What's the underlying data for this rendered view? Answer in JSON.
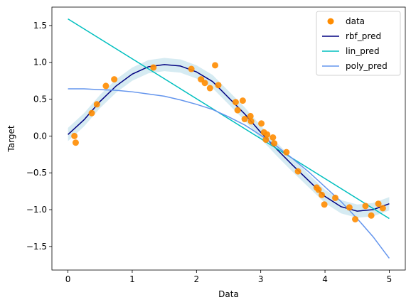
{
  "chart_data": {
    "type": "scatter",
    "title": "",
    "xlabel": "Data",
    "ylabel": "Target",
    "xlim": [
      -0.25,
      5.25
    ],
    "ylim": [
      -1.82,
      1.75
    ],
    "xticks": [
      0,
      1,
      2,
      3,
      4,
      5
    ],
    "xtick_labels": [
      "0",
      "1",
      "2",
      "3",
      "4",
      "5"
    ],
    "yticks": [
      -1.5,
      -1.0,
      -0.5,
      0.0,
      0.5,
      1.0,
      1.5
    ],
    "ytick_labels": [
      "−1.5",
      "−1.0",
      "−0.5",
      "0.0",
      "0.5",
      "1.0",
      "1.5"
    ],
    "grid": false,
    "legend_position": "top-right",
    "scatter": {
      "name": "data",
      "color": "#ff8c00",
      "points": [
        [
          0.1,
          0.0
        ],
        [
          0.12,
          -0.09
        ],
        [
          0.37,
          0.31
        ],
        [
          0.45,
          0.43
        ],
        [
          0.59,
          0.68
        ],
        [
          0.72,
          0.77
        ],
        [
          1.33,
          0.93
        ],
        [
          1.92,
          0.91
        ],
        [
          2.07,
          0.77
        ],
        [
          2.13,
          0.72
        ],
        [
          2.21,
          0.65
        ],
        [
          2.29,
          0.96
        ],
        [
          2.34,
          0.69
        ],
        [
          2.61,
          0.46
        ],
        [
          2.64,
          0.35
        ],
        [
          2.72,
          0.48
        ],
        [
          2.75,
          0.23
        ],
        [
          2.84,
          0.27
        ],
        [
          2.85,
          0.2
        ],
        [
          3.01,
          0.17
        ],
        [
          3.05,
          0.05
        ],
        [
          3.08,
          -0.05
        ],
        [
          3.1,
          0.02
        ],
        [
          3.19,
          -0.02
        ],
        [
          3.21,
          -0.1
        ],
        [
          3.4,
          -0.22
        ],
        [
          3.58,
          -0.48
        ],
        [
          3.87,
          -0.7
        ],
        [
          3.9,
          -0.73
        ],
        [
          3.95,
          -0.8
        ],
        [
          3.99,
          -0.93
        ],
        [
          4.16,
          -0.84
        ],
        [
          4.38,
          -0.97
        ],
        [
          4.47,
          -1.13
        ],
        [
          4.63,
          -0.95
        ],
        [
          4.72,
          -1.08
        ],
        [
          4.83,
          -0.92
        ],
        [
          4.9,
          -0.98
        ]
      ]
    },
    "series": [
      {
        "name": "rbf_pred",
        "color": "#000080",
        "x": [
          0.0,
          0.25,
          0.5,
          0.75,
          1.0,
          1.25,
          1.5,
          1.75,
          2.0,
          2.25,
          2.5,
          2.75,
          3.0,
          3.25,
          3.5,
          3.75,
          4.0,
          4.25,
          4.5,
          4.75,
          5.0
        ],
        "values": [
          0.02,
          0.22,
          0.47,
          0.68,
          0.84,
          0.94,
          0.97,
          0.95,
          0.87,
          0.74,
          0.52,
          0.3,
          0.05,
          -0.18,
          -0.4,
          -0.61,
          -0.82,
          -0.96,
          -1.02,
          -1.0,
          -0.92
        ]
      },
      {
        "name": "lin_pred",
        "color": "#00bfbf",
        "x": [
          0.0,
          5.0
        ],
        "values": [
          1.59,
          -1.12
        ]
      },
      {
        "name": "poly_pred",
        "color": "#6495ed",
        "x": [
          0.0,
          0.25,
          0.5,
          0.75,
          1.0,
          1.25,
          1.5,
          1.75,
          2.0,
          2.25,
          2.5,
          2.75,
          3.0,
          3.25,
          3.5,
          3.75,
          4.0,
          4.25,
          4.5,
          4.75,
          5.0
        ],
        "values": [
          0.64,
          0.64,
          0.63,
          0.62,
          0.6,
          0.57,
          0.54,
          0.49,
          0.43,
          0.36,
          0.26,
          0.15,
          0.01,
          -0.14,
          -0.31,
          -0.49,
          -0.69,
          -0.89,
          -1.12,
          -1.37,
          -1.66
        ]
      }
    ],
    "band": {
      "color": "#add8e6",
      "half_width": 0.09
    }
  }
}
